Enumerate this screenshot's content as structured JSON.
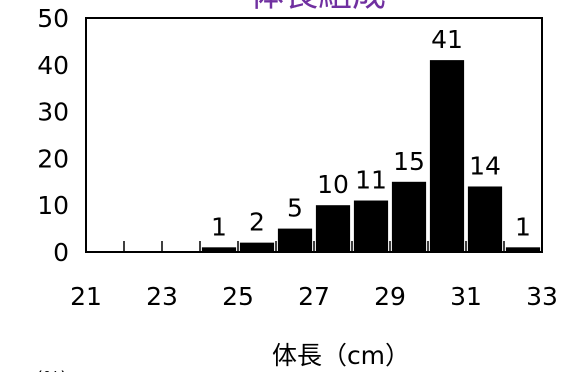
{
  "chart_data": {
    "type": "bar",
    "title": "体長組成",
    "xlabel": "体長（cm）",
    "ylabel": "(%)",
    "ylim": [
      0,
      50
    ],
    "yticks": [
      0,
      10,
      20,
      30,
      40,
      50
    ],
    "xlim": [
      21,
      33
    ],
    "xticks": [
      21,
      23,
      25,
      27,
      29,
      31,
      33
    ],
    "categories": [
      21,
      22,
      23,
      24,
      25,
      26,
      27,
      28,
      29,
      30,
      31,
      32
    ],
    "values": [
      0,
      0,
      0,
      1,
      2,
      5,
      10,
      11,
      15,
      41,
      14,
      1
    ],
    "data_labels": [
      "",
      "",
      "",
      "1",
      "2",
      "5",
      "10",
      "11",
      "15",
      "41",
      "14",
      "1"
    ],
    "title_color": "#7030a0",
    "bar_color": "#000000"
  }
}
